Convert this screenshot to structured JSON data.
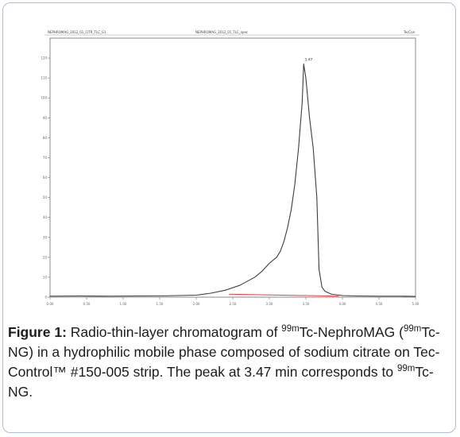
{
  "chart_data": {
    "type": "line",
    "header": {
      "left": "NEPHROMAG_2012_01_CITR_TLC_G1",
      "middle": "NEPHROMAG_2012_01_TLC_spec",
      "right": "TecCon"
    },
    "x_ticks": [
      "0.00",
      "0.50",
      "1.00",
      "1.50",
      "2.00",
      "2.50",
      "3.00",
      "3.50",
      "4.00",
      "4.50",
      "5.00"
    ],
    "y_ticks": [
      "0",
      "10",
      "20",
      "30",
      "40",
      "50",
      "60",
      "70",
      "80",
      "90",
      "100",
      "110",
      "120"
    ],
    "xlim": [
      0,
      5
    ],
    "ylim": [
      0,
      130
    ],
    "peak_label": "3.47",
    "series": [
      {
        "color": "#3c3c3c",
        "x": [
          0,
          0.4,
          0.8,
          1.2,
          1.6,
          2.0,
          2.2,
          2.4,
          2.6,
          2.7,
          2.8,
          2.9,
          3.0,
          3.1,
          3.15,
          3.2,
          3.25,
          3.3,
          3.35,
          3.4,
          3.45,
          3.47,
          3.5,
          3.55,
          3.6,
          3.65,
          3.68,
          3.72,
          3.76,
          3.85,
          4.0,
          4.2,
          4.5,
          4.8,
          5.0
        ],
        "y": [
          0.5,
          0.6,
          0.5,
          0.6,
          0.7,
          1.0,
          2.0,
          3.5,
          6.0,
          8.0,
          10.0,
          13.0,
          17.0,
          20.0,
          23.0,
          28.0,
          35.0,
          44.0,
          57.0,
          75.0,
          98.0,
          117.0,
          110.0,
          90.0,
          75.0,
          50.0,
          14.0,
          5.0,
          3.0,
          1.5,
          0.8,
          0.6,
          0.5,
          0.5,
          0.4
        ]
      }
    ],
    "baseline": {
      "color": "#e0403f",
      "x": [
        2.45,
        3.95
      ],
      "y": [
        1.5,
        0.5
      ]
    }
  },
  "caption": {
    "figure_label": "Figure 1:",
    "text_1": " Radio-thin-layer chromatogram of ",
    "sup_1": "99m",
    "text_2": "Tc-NephroMAG (",
    "sup_2": "99m",
    "text_3": "Tc-NG) in a hydrophilic mobile phase composed of sodium citrate on Tec-Control™ #150-005 strip. The peak at 3.47 min corresponds to ",
    "sup_3": "99m",
    "text_4": "Tc-NG."
  }
}
